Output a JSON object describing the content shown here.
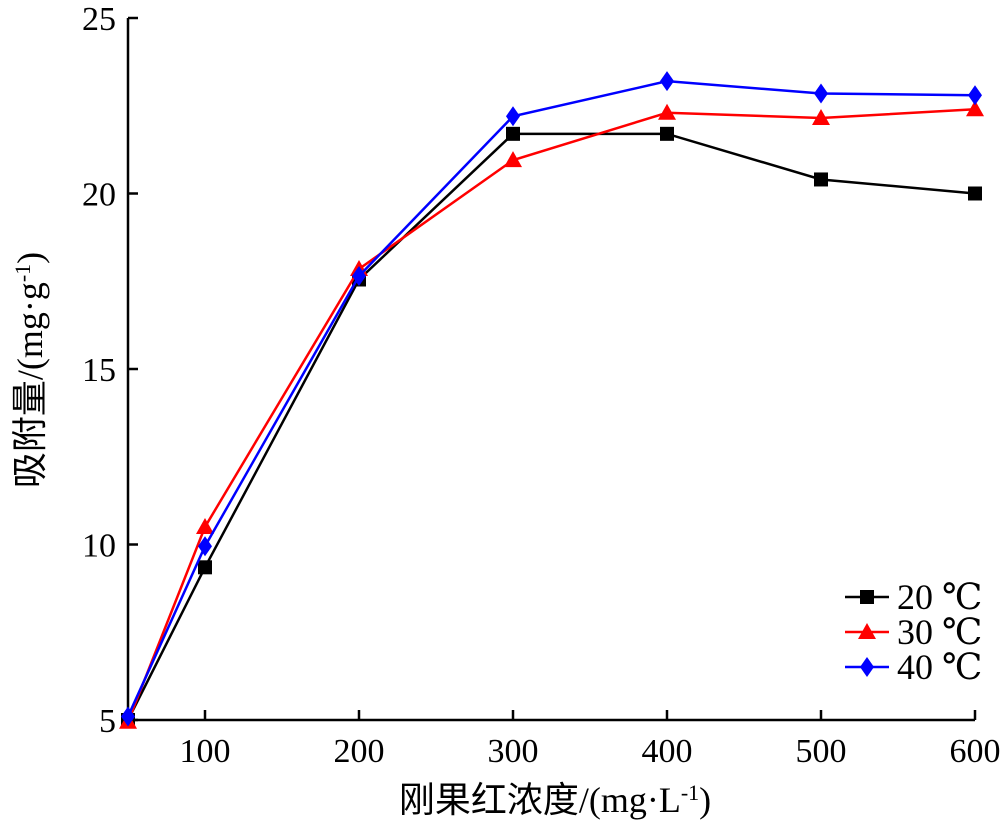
{
  "chart_data": {
    "type": "line",
    "xlabel": "刚果红浓度/(mg·L",
    "xlabel_sup": "-1",
    "xlabel_end": ")",
    "ylabel": "吸附量/(mg·g",
    "ylabel_sup": "-1",
    "ylabel_end": ")",
    "xlim": [
      50,
      600
    ],
    "ylim": [
      5,
      25
    ],
    "x_ticks": [
      100,
      200,
      300,
      400,
      500,
      600
    ],
    "x_tick_labels": [
      "100",
      "200",
      "300",
      "400",
      "500",
      "600"
    ],
    "y_ticks": [
      5,
      10,
      15,
      20,
      25
    ],
    "y_tick_labels": [
      "5",
      "10",
      "15",
      "20",
      "25"
    ],
    "grid": false,
    "legend_position": "bottom-right",
    "x": [
      50,
      100,
      200,
      300,
      400,
      500,
      600
    ],
    "series": [
      {
        "name": "20 ℃",
        "color": "#000000",
        "marker": "square",
        "values": [
          5.0,
          9.35,
          17.55,
          21.7,
          21.7,
          20.4,
          20.0
        ]
      },
      {
        "name": "30 ℃",
        "color": "#ff0000",
        "marker": "triangle",
        "values": [
          4.95,
          10.5,
          17.85,
          20.95,
          22.3,
          22.15,
          22.4
        ]
      },
      {
        "name": "40 ℃",
        "color": "#0000ff",
        "marker": "diamond",
        "values": [
          5.1,
          9.95,
          17.65,
          22.2,
          23.2,
          22.85,
          22.8
        ]
      }
    ]
  }
}
